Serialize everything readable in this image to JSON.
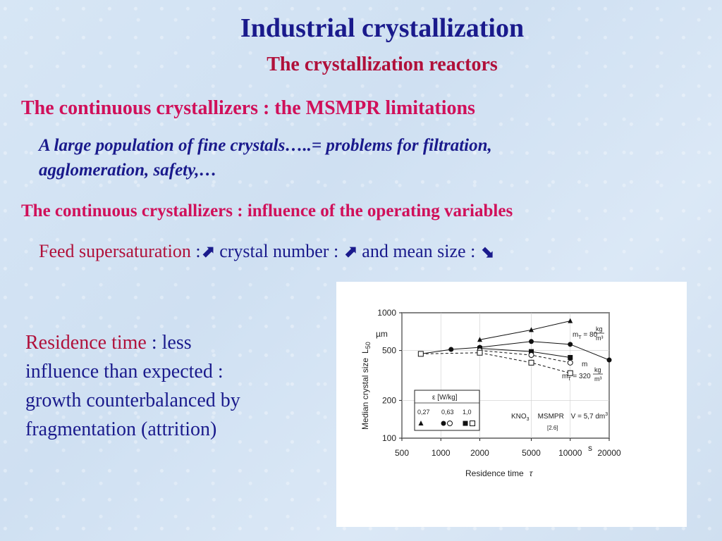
{
  "slide": {
    "title": "Industrial crystallization",
    "subtitle": "The crystallization reactors",
    "heading1": "The continuous crystallizers : the MSMPR limitations",
    "paragraph1_line1": "A large population of fine crystals…..= problems for filtration,",
    "paragraph1_line2": "agglomeration, safety,…",
    "heading2": "The continuous crystallizers : influence of the operating variables",
    "feed": {
      "label": "Feed supersaturation",
      "sep1": " :",
      "arrow_up_1": "⬈",
      "middle": "  crystal number : ",
      "arrow_up_2": "⬈",
      "end": " and mean size : ",
      "arrow_down": "⬊"
    },
    "residence": {
      "label": "Residence time",
      "line1_rest": " : less",
      "line2": "influence than expected :",
      "line3": "growth counterbalanced by",
      "line4": "fragmentation (attrition)"
    }
  },
  "chart_data": {
    "type": "line",
    "xlabel": "Residence time",
    "xsymbol": "τ",
    "xunit": "s",
    "ylabel": "Median crystal size",
    "ysymbol": "L",
    "ysub": "50",
    "yunit": "µm",
    "x_scale": "log",
    "y_scale": "log",
    "xlim": [
      500,
      20000
    ],
    "ylim": [
      100,
      1000
    ],
    "x_ticks": [
      "500",
      "1000",
      "2000",
      "5000",
      "10000",
      "20000"
    ],
    "y_ticks": [
      "100",
      "200",
      "500",
      "1000"
    ],
    "legend": {
      "header": "ε [W/kg]",
      "values": [
        "0,27",
        "0,63",
        "1,0"
      ],
      "placement": "lower-left"
    },
    "annotation": {
      "system": "KNO",
      "system_sub": "3",
      "reactor": "MSMPR",
      "volume": "V = 5,7 dm",
      "volume_sup": "3",
      "ref": "[2.6]"
    },
    "series_labels": {
      "high": {
        "prefix": "m",
        "sub": "T",
        "value": " = 80",
        "unit_num": "kg",
        "unit_den": "m³"
      },
      "low": {
        "prefix": "m",
        "sub": "T",
        "value": " = 320",
        "unit_num": "kg",
        "unit_den": "m³"
      },
      "partial": "m"
    },
    "series": [
      {
        "marker": "triangle-filled",
        "dash": false,
        "x": [
          2000,
          5000,
          10000
        ],
        "y": [
          610,
          730,
          860
        ]
      },
      {
        "marker": "circle-filled",
        "dash": false,
        "x": [
          700,
          1200,
          2000,
          5000,
          10000,
          20000
        ],
        "y": [
          470,
          510,
          530,
          590,
          560,
          420
        ]
      },
      {
        "marker": "square-filled",
        "dash": false,
        "x": [
          2000,
          5000,
          10000
        ],
        "y": [
          520,
          490,
          440
        ]
      },
      {
        "marker": "circle-open",
        "dash": true,
        "x": [
          2000,
          5000,
          10000
        ],
        "y": [
          500,
          460,
          400
        ]
      },
      {
        "marker": "square-open",
        "dash": true,
        "x": [
          700,
          2000,
          5000,
          10000
        ],
        "y": [
          470,
          480,
          400,
          330
        ]
      }
    ]
  }
}
